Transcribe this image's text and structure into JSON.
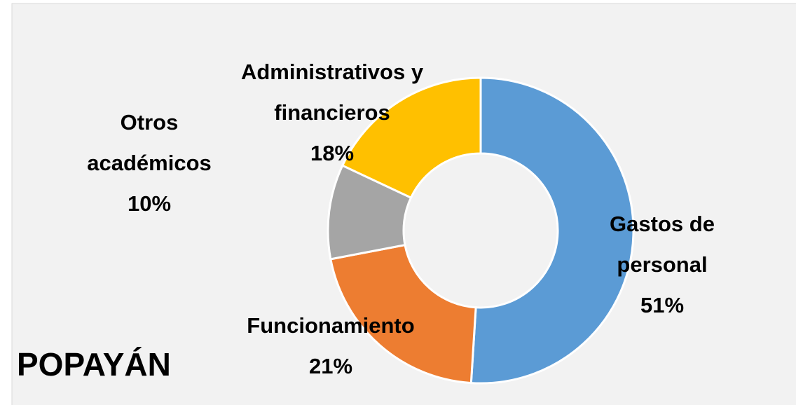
{
  "chart_data": {
    "type": "donut",
    "categories": [
      "Gastos de personal",
      "Funcionamiento",
      "Otros académicos",
      "Administrativos y financieros"
    ],
    "values": [
      51,
      21,
      10,
      18
    ],
    "value_labels": [
      "51%",
      "21%",
      "10%",
      "18%"
    ],
    "colors": [
      "#5b9bd5",
      "#ed7d31",
      "#a5a5a5",
      "#ffc000"
    ],
    "annotation": "POPAYÁN"
  }
}
